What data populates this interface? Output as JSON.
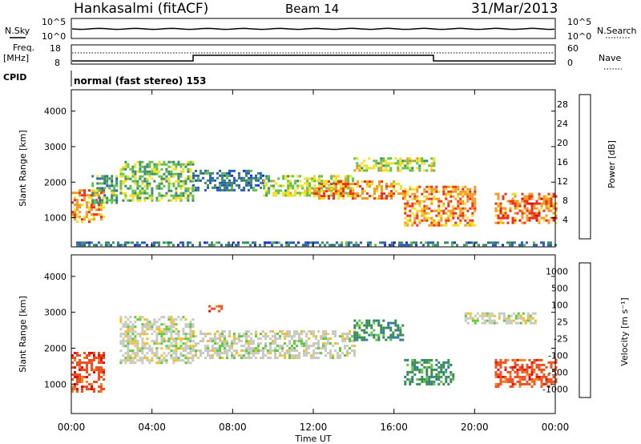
{
  "header": {
    "station": "Hankasalmi (fitACF)",
    "beam": "Beam 14",
    "date": "31/Mar/2013"
  },
  "noise_panel": {
    "left_label": "N.Sky",
    "right_label": "N.Search",
    "ticks_left": [
      "10^5",
      "10^0"
    ],
    "ticks_right": [
      "10^5",
      "10^0"
    ]
  },
  "freq_panel": {
    "left_label_line1": "Freq.",
    "left_label_line2": "[MHz]",
    "right_label": "Nave",
    "ticks_left": [
      "18",
      "8"
    ],
    "ticks_right": [
      "60",
      "0"
    ]
  },
  "cpid": {
    "label": "CPID",
    "text": "normal (fast stereo) 153"
  },
  "chart_data": [
    {
      "type": "heatmap",
      "title": "",
      "quantity": "Power",
      "xlabel": "Time UT",
      "ylabel": "Slant Range [km]",
      "x_ticks": [
        "00:00",
        "04:00",
        "08:00",
        "12:00",
        "16:00",
        "20:00",
        "00:00"
      ],
      "xlim_hours": [
        0,
        24
      ],
      "y_ticks": [
        1000,
        2000,
        3000,
        4000
      ],
      "ylim_km": [
        180,
        4600
      ],
      "colorbar": {
        "label": "Power [dB]",
        "ticks": [
          4,
          8,
          12,
          16,
          20,
          24,
          28
        ],
        "range": [
          0,
          30
        ],
        "colors": [
          "#1f2fd8",
          "#2a5fb8",
          "#3f8a6c",
          "#63c04a",
          "#f0e020",
          "#f49a20",
          "#ee3020",
          "#d21010"
        ]
      },
      "echo_regions": [
        {
          "t0": 0.0,
          "t1": 1.6,
          "r0": 900,
          "r1": 1800,
          "level": 22
        },
        {
          "t0": 1.0,
          "t1": 2.2,
          "r0": 1400,
          "r1": 2200,
          "level": 12
        },
        {
          "t0": 2.4,
          "t1": 6.0,
          "r0": 1500,
          "r1": 2600,
          "level": 14
        },
        {
          "t0": 6.0,
          "t1": 9.5,
          "r0": 1750,
          "r1": 2350,
          "level": 8
        },
        {
          "t0": 9.5,
          "t1": 14.0,
          "r0": 1650,
          "r1": 2200,
          "level": 16
        },
        {
          "t0": 12.0,
          "t1": 16.5,
          "r0": 1550,
          "r1": 2050,
          "level": 22
        },
        {
          "t0": 14.0,
          "t1": 18.0,
          "r0": 2300,
          "r1": 2700,
          "level": 16
        },
        {
          "t0": 16.5,
          "t1": 20.0,
          "r0": 800,
          "r1": 1900,
          "level": 22
        },
        {
          "t0": 21.0,
          "t1": 24.0,
          "r0": 850,
          "r1": 1700,
          "level": 24
        },
        {
          "t0": 0.0,
          "t1": 24.0,
          "r0": 200,
          "r1": 330,
          "level": 8
        }
      ]
    },
    {
      "type": "heatmap",
      "title": "",
      "quantity": "Velocity",
      "xlabel": "Time UT",
      "ylabel": "Slant Range [km]",
      "x_ticks": [
        "00:00",
        "04:00",
        "08:00",
        "12:00",
        "16:00",
        "20:00",
        "00:00"
      ],
      "xlim_hours": [
        0,
        24
      ],
      "y_ticks": [
        1000,
        2000,
        3000,
        4000
      ],
      "ylim_km": [
        180,
        4600
      ],
      "colorbar": {
        "label": "Velocity [m s⁻¹]",
        "ticks": [
          "1000",
          "500",
          "100",
          "25",
          "-25",
          "-100",
          "-500",
          "-1000"
        ],
        "colors": [
          "#1d38c8",
          "#2a78a8",
          "#3a8a55",
          "#62c840",
          "#c9c9c0",
          "#f0c020",
          "#f08a20",
          "#f05020",
          "#e01010"
        ]
      },
      "echo_regions": [
        {
          "t0": 0.0,
          "t1": 1.6,
          "r0": 800,
          "r1": 1900,
          "class": "-100"
        },
        {
          "t0": 2.4,
          "t1": 6.0,
          "r0": 1600,
          "r1": 2900,
          "class": "25"
        },
        {
          "t0": 6.0,
          "t1": 14.0,
          "r0": 1700,
          "r1": 2500,
          "class": "25"
        },
        {
          "t0": 14.0,
          "t1": 16.5,
          "r0": 2200,
          "r1": 2800,
          "class": "100"
        },
        {
          "t0": 16.5,
          "t1": 19.0,
          "r0": 1000,
          "r1": 1700,
          "class": "100"
        },
        {
          "t0": 19.5,
          "t1": 23.0,
          "r0": 2700,
          "r1": 3000,
          "class": "25"
        },
        {
          "t0": 21.0,
          "t1": 24.0,
          "r0": 900,
          "r1": 1700,
          "class": "-100"
        },
        {
          "t0": 6.8,
          "t1": 7.6,
          "r0": 3000,
          "r1": 3200,
          "class": "-100"
        }
      ]
    }
  ]
}
